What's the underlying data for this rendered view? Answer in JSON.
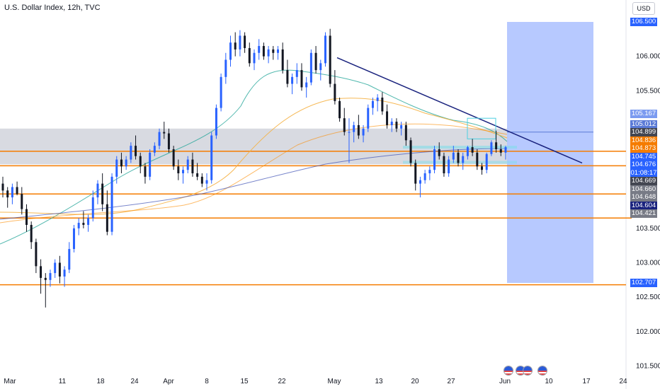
{
  "header": {
    "title": "U.S. Dollar Index, 12h, TVC",
    "currency": "USD"
  },
  "colors": {
    "candle_up": "#2962ff",
    "candle_down": "#131722",
    "zone_gray": "#d1d4dc",
    "level_line": "#f57c00",
    "trendline": "#1a237e",
    "projection_box": "#b3c6ff"
  },
  "chart_data": {
    "type": "candlestick",
    "title": "U.S. Dollar Index, 12h, TVC",
    "xlabel": "",
    "ylabel": "",
    "ylim": [
      101.35,
      106.65
    ],
    "y_ticks": [
      "106.000",
      "105.500",
      "103.500",
      "103.000",
      "102.500",
      "102.000",
      "101.500"
    ],
    "x_ticks": [
      "Mar",
      "11",
      "18",
      "24",
      "Apr",
      "8",
      "15",
      "22",
      "May",
      "13",
      "20",
      "27",
      "Jun",
      "10",
      "17",
      "24"
    ],
    "price_labels": [
      {
        "text": "106.500",
        "value": 106.5,
        "color": "#2962ff"
      },
      {
        "text": "105.167",
        "value": 105.167,
        "color": "#7b9bf0"
      },
      {
        "text": "105.012",
        "value": 105.012,
        "color": "#5a7ad6"
      },
      {
        "text": "104.899",
        "value": 104.899,
        "color": "#434651"
      },
      {
        "text": "104.836",
        "value": 104.836,
        "color": "#f57c00"
      },
      {
        "text": "104.873",
        "value": 104.873,
        "color": "#f57c00"
      },
      {
        "text": "104.745",
        "value": 104.745,
        "color": "#2962ff"
      },
      {
        "text": "104.676",
        "value": 104.676,
        "color": "#2962ff"
      },
      {
        "text": "01:08:17",
        "value": 104.61,
        "color": "#2962ff"
      },
      {
        "text": "104.669",
        "value": 104.669,
        "color": "#434651"
      },
      {
        "text": "104.660",
        "value": 104.66,
        "color": "#787b86"
      },
      {
        "text": "104.648",
        "value": 104.648,
        "color": "#787b86"
      },
      {
        "text": "104.604",
        "value": 104.604,
        "color": "#1a237e"
      },
      {
        "text": "104.421",
        "value": 104.421,
        "color": "#787b86"
      },
      {
        "text": "102.707",
        "value": 102.707,
        "color": "#2962ff"
      }
    ],
    "levels": [
      104.62,
      104.41,
      104.0,
      103.65,
      102.68
    ],
    "zone": [
      104.95,
      104.43
    ],
    "trendline": {
      "from": [
        "May",
        105.98
      ],
      "to": [
        "Jun 17",
        104.45
      ]
    },
    "projection": [
      106.5,
      102.707
    ],
    "series": [
      {
        "name": "",
        "values": [
          [
            104.15,
            104.25,
            103.95,
            104.05
          ],
          [
            104.05,
            104.1,
            103.8,
            103.95
          ],
          [
            103.95,
            104.15,
            103.85,
            104.1
          ],
          [
            104.1,
            104.18,
            103.98,
            104.0
          ],
          [
            104.0,
            104.1,
            103.7,
            103.78
          ],
          [
            103.78,
            103.85,
            103.45,
            103.55
          ],
          [
            103.55,
            103.6,
            103.2,
            103.3
          ],
          [
            103.3,
            103.35,
            102.85,
            102.95
          ],
          [
            102.95,
            103.05,
            102.55,
            102.78
          ],
          [
            102.78,
            102.85,
            102.35,
            102.75
          ],
          [
            102.75,
            102.9,
            102.65,
            102.85
          ],
          [
            102.85,
            103.05,
            102.78,
            103.0
          ],
          [
            103.0,
            103.1,
            102.7,
            102.8
          ],
          [
            102.8,
            102.95,
            102.65,
            102.9
          ],
          [
            102.9,
            103.3,
            102.85,
            103.2
          ],
          [
            103.2,
            103.55,
            103.15,
            103.5
          ],
          [
            103.5,
            103.65,
            103.4,
            103.58
          ],
          [
            103.58,
            103.75,
            103.5,
            103.55
          ],
          [
            103.55,
            103.7,
            103.45,
            103.65
          ],
          [
            103.65,
            104.05,
            103.6,
            103.95
          ],
          [
            103.95,
            104.2,
            103.85,
            104.15
          ],
          [
            104.15,
            104.3,
            103.75,
            103.85
          ],
          [
            103.85,
            104.05,
            103.4,
            103.45
          ],
          [
            103.45,
            104.3,
            103.4,
            104.25
          ],
          [
            104.25,
            104.55,
            104.15,
            104.5
          ],
          [
            104.5,
            104.6,
            104.3,
            104.4
          ],
          [
            104.4,
            104.55,
            104.35,
            104.5
          ],
          [
            104.5,
            104.75,
            104.45,
            104.7
          ],
          [
            104.7,
            104.85,
            104.5,
            104.55
          ],
          [
            104.55,
            104.6,
            104.3,
            104.4
          ],
          [
            104.4,
            104.45,
            104.15,
            104.25
          ],
          [
            104.25,
            104.65,
            104.2,
            104.6
          ],
          [
            104.6,
            104.75,
            104.55,
            104.7
          ],
          [
            104.7,
            104.95,
            104.65,
            104.9
          ],
          [
            104.9,
            105.05,
            104.8,
            104.88
          ],
          [
            104.88,
            104.95,
            104.6,
            104.65
          ],
          [
            104.65,
            104.7,
            104.35,
            104.4
          ],
          [
            104.4,
            104.5,
            104.2,
            104.3
          ],
          [
            104.3,
            104.4,
            104.15,
            104.35
          ],
          [
            104.35,
            104.55,
            104.3,
            104.5
          ],
          [
            104.5,
            104.6,
            104.25,
            104.3
          ],
          [
            104.3,
            104.45,
            104.2,
            104.25
          ],
          [
            104.25,
            104.3,
            104.1,
            104.15
          ],
          [
            104.15,
            104.3,
            104.05,
            104.2
          ],
          [
            104.2,
            104.9,
            104.15,
            104.85
          ],
          [
            104.85,
            105.3,
            104.8,
            105.25
          ],
          [
            105.25,
            105.75,
            105.2,
            105.7
          ],
          [
            105.7,
            106.05,
            105.6,
            105.95
          ],
          [
            105.95,
            106.3,
            105.85,
            106.2
          ],
          [
            106.2,
            106.35,
            106.0,
            106.1
          ],
          [
            106.1,
            106.38,
            106.0,
            106.3
          ],
          [
            106.3,
            106.35,
            106.05,
            106.12
          ],
          [
            106.12,
            106.2,
            105.85,
            105.9
          ],
          [
            105.9,
            106.1,
            105.8,
            106.05
          ],
          [
            106.05,
            106.25,
            105.95,
            106.15
          ],
          [
            106.15,
            106.2,
            105.95,
            106.0
          ],
          [
            106.0,
            106.15,
            105.9,
            106.1
          ],
          [
            106.1,
            106.15,
            105.95,
            106.05
          ],
          [
            106.05,
            106.15,
            105.95,
            106.1
          ],
          [
            106.1,
            106.2,
            105.75,
            105.8
          ],
          [
            105.8,
            105.95,
            105.55,
            105.6
          ],
          [
            105.6,
            105.75,
            105.45,
            105.7
          ],
          [
            105.7,
            105.9,
            105.6,
            105.8
          ],
          [
            105.8,
            105.9,
            105.5,
            105.55
          ],
          [
            105.55,
            105.7,
            105.4,
            105.62
          ],
          [
            105.62,
            106.1,
            105.58,
            106.05
          ],
          [
            106.05,
            106.15,
            105.75,
            105.8
          ],
          [
            105.8,
            105.95,
            105.65,
            105.9
          ],
          [
            105.9,
            106.35,
            105.85,
            106.3
          ],
          [
            106.3,
            106.4,
            105.55,
            105.6
          ],
          [
            105.6,
            105.8,
            105.3,
            105.35
          ],
          [
            105.35,
            105.4,
            105.05,
            105.1
          ],
          [
            105.1,
            105.25,
            104.85,
            104.9
          ],
          [
            104.9,
            105.1,
            104.45,
            104.9
          ],
          [
            104.9,
            105.05,
            104.75,
            105.0
          ],
          [
            105.0,
            105.15,
            104.8,
            104.85
          ],
          [
            104.85,
            105.0,
            104.75,
            104.95
          ],
          [
            104.95,
            105.3,
            104.9,
            105.25
          ],
          [
            105.25,
            105.4,
            105.15,
            105.35
          ],
          [
            105.35,
            105.45,
            105.2,
            105.4
          ],
          [
            105.4,
            105.48,
            105.15,
            105.2
          ],
          [
            105.2,
            105.3,
            104.95,
            105.0
          ],
          [
            105.0,
            105.1,
            104.9,
            105.05
          ],
          [
            105.05,
            105.1,
            104.9,
            104.95
          ],
          [
            104.95,
            105.05,
            104.85,
            105.0
          ],
          [
            105.0,
            105.05,
            104.7,
            104.78
          ],
          [
            104.78,
            104.82,
            104.4,
            104.45
          ],
          [
            104.45,
            104.5,
            104.05,
            104.15
          ],
          [
            104.15,
            104.25,
            103.95,
            104.2
          ],
          [
            104.2,
            104.35,
            104.15,
            104.3
          ],
          [
            104.3,
            104.4,
            104.2,
            104.35
          ],
          [
            104.35,
            104.7,
            104.3,
            104.65
          ],
          [
            104.65,
            104.75,
            104.5,
            104.55
          ],
          [
            104.55,
            104.6,
            104.25,
            104.3
          ],
          [
            104.3,
            104.55,
            104.25,
            104.5
          ],
          [
            104.5,
            104.7,
            104.45,
            104.6
          ],
          [
            104.6,
            104.65,
            104.4,
            104.45
          ],
          [
            104.45,
            104.6,
            104.35,
            104.55
          ],
          [
            104.55,
            104.7,
            104.5,
            104.68
          ],
          [
            104.68,
            104.8,
            104.55,
            104.6
          ],
          [
            104.6,
            104.65,
            104.35,
            104.4
          ],
          [
            104.4,
            104.45,
            104.28,
            104.35
          ],
          [
            104.35,
            104.6,
            104.3,
            104.58
          ],
          [
            104.58,
            104.78,
            104.55,
            104.75
          ],
          [
            104.75,
            104.92,
            104.6,
            104.65
          ],
          [
            104.65,
            104.72,
            104.55,
            104.6
          ],
          [
            104.6,
            104.7,
            104.5,
            104.68
          ]
        ]
      }
    ]
  }
}
